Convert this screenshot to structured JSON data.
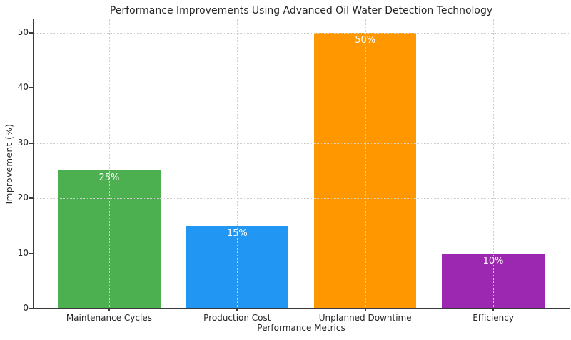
{
  "chart_data": {
    "type": "bar",
    "title": "Performance Improvements Using Advanced Oil Water Detection Technology",
    "xlabel": "Performance Metrics",
    "ylabel": "Improvement (%)",
    "categories": [
      "Maintenance Cycles",
      "Production Cost",
      "Unplanned Downtime",
      "Efficiency"
    ],
    "values": [
      25,
      15,
      50,
      10
    ],
    "bar_labels": [
      "25%",
      "15%",
      "50%",
      "10%"
    ],
    "bar_colors": [
      "#4caf50",
      "#2196f3",
      "#ff9800",
      "#9c27b0"
    ],
    "value_label_color": "#ffffff",
    "yticks": [
      0,
      10,
      20,
      30,
      40,
      50
    ],
    "ylim": [
      0,
      52.4
    ],
    "xlim": [
      -0.59,
      3.59
    ],
    "bar_width_fraction": 0.8,
    "grid": {
      "style": "dotted",
      "color": "#cfcfcf",
      "axes": "both",
      "above_bars": true
    },
    "legend": null,
    "background_color": "#ffffff",
    "spine_color": "#3b3b3b",
    "text_color": "#262626"
  }
}
